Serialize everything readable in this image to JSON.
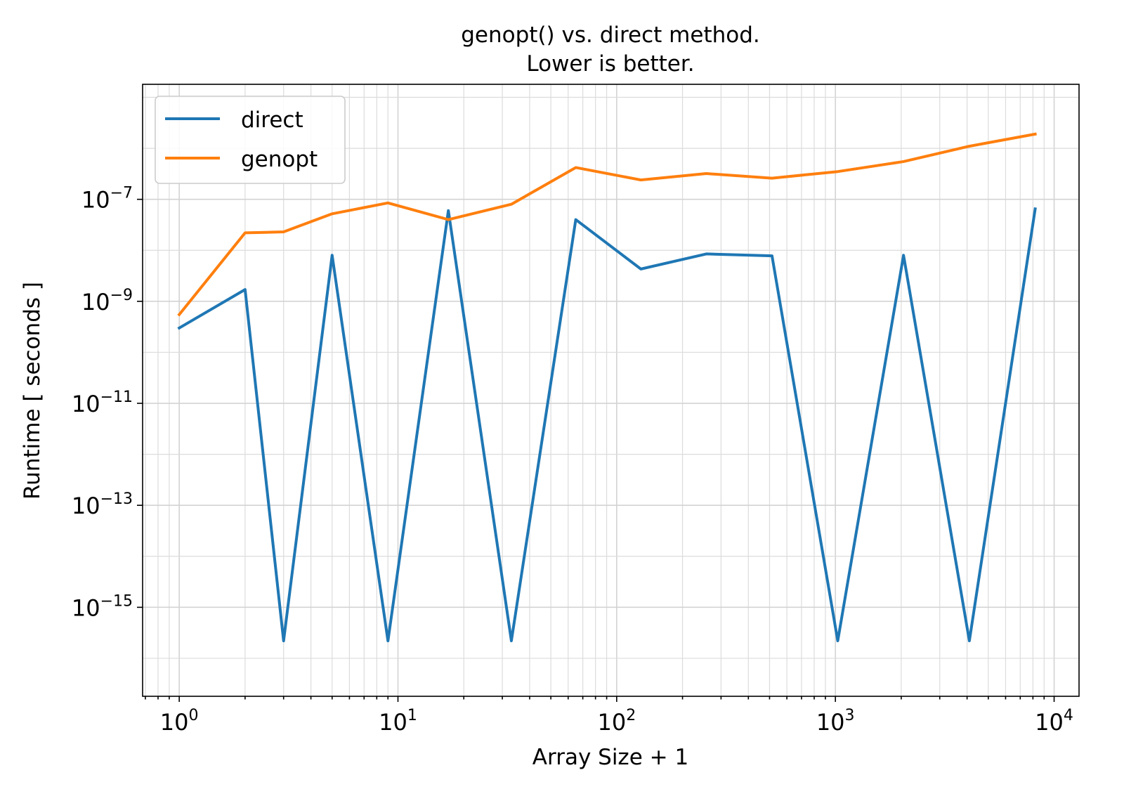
{
  "chart_data": {
    "type": "line",
    "title_line1": "genopt() vs. direct method.",
    "title_line2": "Lower is better.",
    "xlabel": "Array Size + 1",
    "ylabel": "Runtime [ seconds ]",
    "xscale": "log",
    "yscale": "log",
    "xlim": [
      0.68,
      13000
    ],
    "ylim": [
      1.8e-17,
      1.8e-05
    ],
    "grid": "both",
    "legend_position": "top-left",
    "x_ticks": [
      {
        "base": "10",
        "exp": "0",
        "value": 1
      },
      {
        "base": "10",
        "exp": "1",
        "value": 10
      },
      {
        "base": "10",
        "exp": "2",
        "value": 100
      },
      {
        "base": "10",
        "exp": "3",
        "value": 1000
      },
      {
        "base": "10",
        "exp": "4",
        "value": 10000
      }
    ],
    "y_ticks": [
      {
        "base": "10",
        "exp": "−15",
        "value": 1e-15
      },
      {
        "base": "10",
        "exp": "−13",
        "value": 1e-13
      },
      {
        "base": "10",
        "exp": "−11",
        "value": 1e-11
      },
      {
        "base": "10",
        "exp": "−9",
        "value": 1e-09
      },
      {
        "base": "10",
        "exp": "−7",
        "value": 1e-07
      }
    ],
    "x": [
      1,
      2,
      3,
      5,
      9,
      17,
      33,
      65,
      129,
      257,
      513,
      1025,
      2049,
      4097,
      8193
    ],
    "series": [
      {
        "name": "direct",
        "color": "#1f77b4",
        "values": [
          3e-10,
          1.7e-09,
          2.2e-16,
          8e-09,
          2.2e-16,
          6e-08,
          2.2e-16,
          4e-08,
          4.3e-09,
          8.5e-09,
          7.8e-09,
          2.2e-16,
          8e-09,
          2.2e-16,
          6.5e-08
        ]
      },
      {
        "name": "genopt",
        "color": "#ff7f0e",
        "values": [
          5.5e-10,
          2.2e-08,
          2.3e-08,
          5.2e-08,
          8.5e-08,
          4e-08,
          8e-08,
          4.2e-07,
          2.4e-07,
          3.2e-07,
          2.6e-07,
          3.5e-07,
          5.5e-07,
          1.1e-06,
          1.9e-06
        ]
      }
    ]
  }
}
